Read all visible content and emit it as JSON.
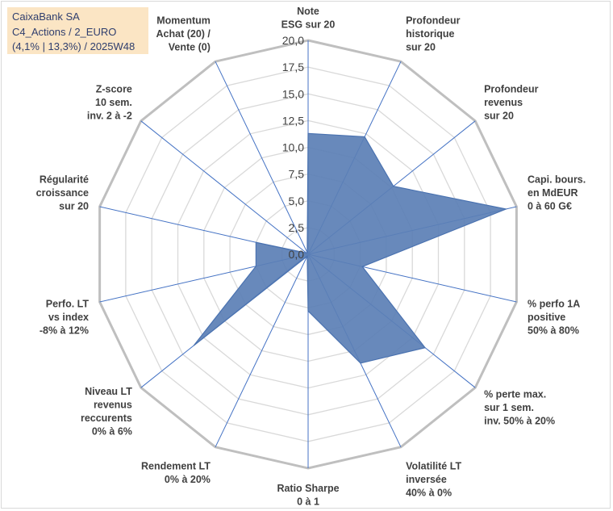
{
  "header": {
    "line1": "CaixaBank SA",
    "line2": "C4_Actions / 2_EURO",
    "line3": "(4,1% | 13,3%) / 2025W48"
  },
  "chart_data": {
    "type": "radar",
    "title": "",
    "axes": [
      [
        "Note",
        "ESG sur 20"
      ],
      [
        "Profondeur",
        "historique",
        "sur 20"
      ],
      [
        "Profondeur",
        "revenus",
        "sur 20"
      ],
      [
        "Capi. bours.",
        "en MdEUR",
        "0 à 60 G€"
      ],
      [
        "% perfo 1A",
        "positive",
        "50% à 80%"
      ],
      [
        "% perte max.",
        "sur 1 sem.",
        "inv. 50% à 20%"
      ],
      [
        "Volatilité LT",
        "inversée",
        "40% à 0%"
      ],
      [
        "Ratio Sharpe",
        "0 à 1"
      ],
      [
        "Rendement LT",
        "0% à 20%"
      ],
      [
        "Niveau LT",
        "revenus",
        "reccurents",
        "0% à 6%"
      ],
      [
        "Perfo. LT",
        "vs index",
        "-8% à 12%"
      ],
      [
        "Régularité",
        "croissance",
        "sur 20"
      ],
      [
        "Z-score",
        "10 sem.",
        "inv. 2 à -2"
      ],
      [
        "Momentum",
        "Achat (20) /",
        "Vente (0)"
      ]
    ],
    "values": [
      11.3,
      12.2,
      10.2,
      19.0,
      5.2,
      14.0,
      11.3,
      5.3,
      0.2,
      13.7,
      5.0,
      5.0,
      0.2,
      0.2
    ],
    "rmin": 0,
    "rmax": 20,
    "ticks": [
      "0,0",
      "2,5",
      "5,0",
      "7,5",
      "10,0",
      "12,5",
      "15,0",
      "17,5",
      "20,0"
    ],
    "colors": {
      "fill": "#5b7fb5",
      "stroke": "#4a72b0",
      "ring": "#d9d9d9",
      "outer_ring": "#bfbfbf",
      "spoke": "#4472c4"
    }
  }
}
